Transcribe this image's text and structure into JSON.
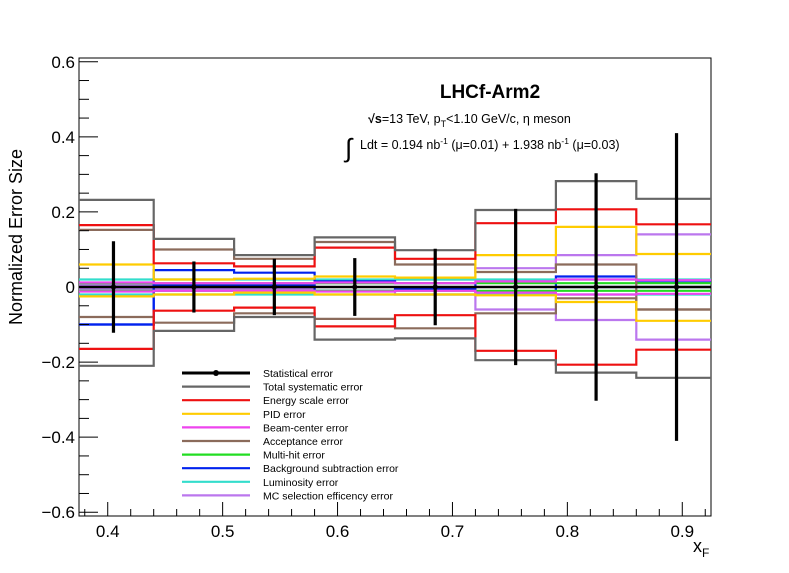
{
  "chart_data": {
    "type": "line",
    "title": "LHCf-Arm2",
    "energy_label": "=13 TeV, p",
    "energy_sub": "T",
    "energy_rest": "<1.10 GeV/c, η meson",
    "sqrt_sign": "√s",
    "lumi_prefix": "Ldt = 0.194 nb",
    "lumi_mid": " (μ=0.01) + 1.938 nb",
    "lumi_suffix": " (μ=0.03)",
    "lumi_sup": "-1",
    "integral_sign": "∫",
    "xlabel": "x",
    "xlabel_sub": "F",
    "ylabel": "Normalized Error Size",
    "xlim": [
      0.375,
      0.925
    ],
    "ylim": [
      -0.61,
      0.61
    ],
    "x_ticks": [
      0.4,
      0.5,
      0.6,
      0.7,
      0.8,
      0.9
    ],
    "x_tick_labels": [
      "0.4",
      "0.5",
      "0.6",
      "0.7",
      "0.8",
      "0.9"
    ],
    "y_ticks": [
      -0.6,
      -0.4,
      -0.2,
      0,
      0.2,
      0.4,
      0.6
    ],
    "y_tick_labels": [
      "−0.6",
      "−0.4",
      "−0.2",
      "0",
      "0.2",
      "0.4",
      "0.6"
    ],
    "bin_edges": [
      0.37,
      0.44,
      0.51,
      0.58,
      0.65,
      0.72,
      0.79,
      0.86,
      0.93
    ],
    "stat_points": {
      "x": [
        0.405,
        0.475,
        0.545,
        0.615,
        0.685,
        0.755,
        0.825,
        0.895
      ],
      "y": [
        0,
        0,
        0,
        0,
        0,
        0,
        0,
        0
      ],
      "err": [
        0.122,
        0.068,
        0.075,
        0.077,
        0.102,
        0.208,
        0.303,
        0.41
      ]
    },
    "series": [
      {
        "name": "Statistical error",
        "color": "#000000",
        "style": "stat"
      },
      {
        "name": "Total systematic error",
        "color": "#666666",
        "upper": [
          0.232,
          0.128,
          0.085,
          0.132,
          0.098,
          0.205,
          0.282,
          0.235
        ],
        "lower": [
          -0.21,
          -0.117,
          -0.08,
          -0.14,
          -0.137,
          -0.195,
          -0.228,
          -0.242
        ]
      },
      {
        "name": "Energy scale error",
        "color": "#ee1111",
        "upper": [
          0.165,
          0.063,
          0.055,
          0.105,
          0.075,
          0.17,
          0.207,
          0.167
        ],
        "lower": [
          -0.165,
          -0.063,
          -0.055,
          -0.105,
          -0.075,
          -0.17,
          -0.207,
          -0.167
        ]
      },
      {
        "name": "PID error",
        "color": "#ffcc00",
        "upper": [
          0.06,
          0.02,
          0.022,
          0.028,
          0.025,
          0.085,
          0.16,
          0.088
        ],
        "lower": [
          -0.025,
          -0.02,
          -0.015,
          -0.02,
          -0.02,
          -0.022,
          -0.04,
          -0.09
        ]
      },
      {
        "name": "Beam-center error",
        "color": "#ee44ee",
        "upper": [
          0.012,
          0.01,
          0.01,
          0.012,
          0.01,
          0.015,
          0.02,
          0.018
        ],
        "lower": [
          -0.012,
          -0.01,
          -0.01,
          -0.012,
          -0.01,
          -0.015,
          -0.02,
          -0.018
        ]
      },
      {
        "name": "Acceptance error",
        "color": "#8b6b5b",
        "upper": [
          0.152,
          0.1,
          0.075,
          0.12,
          0.06,
          0.04,
          0.06,
          -0.06
        ],
        "lower": [
          -0.08,
          -0.095,
          -0.07,
          -0.085,
          -0.11,
          -0.07,
          -0.03,
          -0.06
        ]
      },
      {
        "name": "Multi-hit error",
        "color": "#22dd22",
        "upper": [
          0.01,
          0.01,
          0.01,
          0.01,
          0.01,
          0.01,
          0.01,
          0.01
        ],
        "lower": [
          -0.01,
          -0.01,
          -0.01,
          -0.01,
          -0.01,
          -0.01,
          -0.01,
          -0.01
        ]
      },
      {
        "name": "Background subtraction error",
        "color": "#0022ee",
        "upper": [
          -0.1,
          0.045,
          0.038,
          0.015,
          0.01,
          -0.012,
          0.028,
          0.012
        ],
        "lower": [
          -0.1,
          0.004,
          0.004,
          -0.01,
          -0.005,
          -0.012,
          0.0,
          0.0
        ]
      },
      {
        "name": "Luminosity error",
        "color": "#33ddcc",
        "upper": [
          0.02,
          0.02,
          0.02,
          0.02,
          0.02,
          0.02,
          0.02,
          0.02
        ],
        "lower": [
          -0.02,
          -0.02,
          -0.02,
          -0.02,
          -0.02,
          -0.02,
          -0.02,
          -0.02
        ]
      },
      {
        "name": "MC selection efficency error",
        "color": "#bb77ee",
        "upper": [
          0.005,
          0.005,
          0.005,
          0.01,
          0.02,
          0.05,
          0.085,
          0.14
        ],
        "lower": [
          -0.005,
          -0.005,
          -0.005,
          -0.01,
          -0.02,
          -0.06,
          -0.088,
          -0.14
        ]
      }
    ],
    "legend_position": "bottom-left",
    "grid": false
  }
}
